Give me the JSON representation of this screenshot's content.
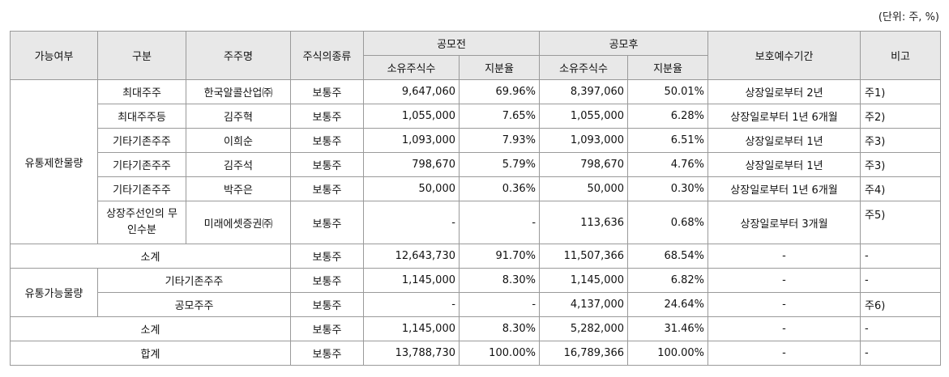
{
  "unit": "(단위: 주, %)",
  "headers": {
    "status": "가능여부",
    "category": "구분",
    "holder": "주주명",
    "stock_type": "주식의종류",
    "before": "공모전",
    "after": "공모후",
    "shares": "소유주식수",
    "ratio": "지분율",
    "lockup": "보호예수기간",
    "remark": "비고"
  },
  "groups": {
    "restricted": "유통제한물량",
    "tradable": "유통가능물량"
  },
  "restricted_rows": [
    {
      "category": "최대주주",
      "holder": "한국알콜산업㈜",
      "type": "보통주",
      "pre_shares": "9,647,060",
      "pre_ratio": "69.96%",
      "post_shares": "8,397,060",
      "post_ratio": "50.01%",
      "lockup": "상장일로부터 2년",
      "remark": "주1)"
    },
    {
      "category": "최대주주등",
      "holder": "김주혁",
      "type": "보통주",
      "pre_shares": "1,055,000",
      "pre_ratio": "7.65%",
      "post_shares": "1,055,000",
      "post_ratio": "6.28%",
      "lockup": "상장일로부터 1년 6개월",
      "remark": "주2)"
    },
    {
      "category": "기타기존주주",
      "holder": "이희순",
      "type": "보통주",
      "pre_shares": "1,093,000",
      "pre_ratio": "7.93%",
      "post_shares": "1,093,000",
      "post_ratio": "6.51%",
      "lockup": "상장일로부터 1년",
      "remark": "주3)"
    },
    {
      "category": "기타기존주주",
      "holder": "김주석",
      "type": "보통주",
      "pre_shares": "798,670",
      "pre_ratio": "5.79%",
      "post_shares": "798,670",
      "post_ratio": "4.76%",
      "lockup": "상장일로부터 1년",
      "remark": "주3)"
    },
    {
      "category": "기타기존주주",
      "holder": "박주은",
      "type": "보통주",
      "pre_shares": "50,000",
      "pre_ratio": "0.36%",
      "post_shares": "50,000",
      "post_ratio": "0.30%",
      "lockup": "상장일로부터 1년 6개월",
      "remark": "주4)"
    },
    {
      "category": "상장주선인의 무인수분",
      "holder": "미래에셋증권㈜",
      "type": "보통주",
      "pre_shares": "-",
      "pre_ratio": "-",
      "post_shares": "113,636",
      "post_ratio": "0.68%",
      "lockup": "상장일로부터 3개월",
      "remark": "주5)"
    }
  ],
  "restricted_subtotal": {
    "label": "소계",
    "type": "보통주",
    "pre_shares": "12,643,730",
    "pre_ratio": "91.70%",
    "post_shares": "11,507,366",
    "post_ratio": "68.54%",
    "lockup": "-",
    "remark": "-"
  },
  "tradable_rows": [
    {
      "category": "기타기존주주",
      "type": "보통주",
      "pre_shares": "1,145,000",
      "pre_ratio": "8.30%",
      "post_shares": "1,145,000",
      "post_ratio": "6.82%",
      "lockup": "-",
      "remark": "-"
    },
    {
      "category": "공모주주",
      "type": "보통주",
      "pre_shares": "-",
      "pre_ratio": "-",
      "post_shares": "4,137,000",
      "post_ratio": "24.64%",
      "lockup": "-",
      "remark": "주6)"
    }
  ],
  "tradable_subtotal": {
    "label": "소계",
    "type": "보통주",
    "pre_shares": "1,145,000",
    "pre_ratio": "8.30%",
    "post_shares": "5,282,000",
    "post_ratio": "31.46%",
    "lockup": "-",
    "remark": "-"
  },
  "total": {
    "label": "합계",
    "type": "보통주",
    "pre_shares": "13,788,730",
    "pre_ratio": "100.00%",
    "post_shares": "16,789,366",
    "post_ratio": "100.00%",
    "lockup": "-",
    "remark": "-"
  }
}
